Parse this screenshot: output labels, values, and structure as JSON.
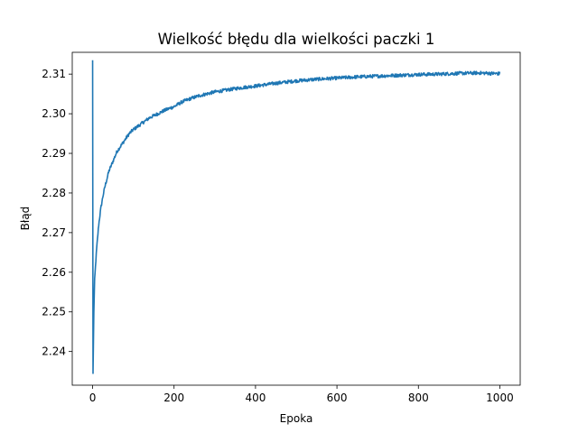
{
  "chart_data": {
    "type": "line",
    "title": "Wielkość błędu dla wielkości paczki 1",
    "xlabel": "Epoka",
    "ylabel": "Błąd",
    "xlim": [
      -50,
      1050
    ],
    "ylim": [
      2.2315,
      2.3155
    ],
    "xticks": [
      0,
      200,
      400,
      600,
      800,
      1000
    ],
    "xtick_labels": [
      "0",
      "200",
      "400",
      "600",
      "800",
      "1000"
    ],
    "yticks": [
      2.24,
      2.25,
      2.26,
      2.27,
      2.28,
      2.29,
      2.3,
      2.31
    ],
    "ytick_labels": [
      "2.24",
      "2.25",
      "2.26",
      "2.27",
      "2.28",
      "2.29",
      "2.30",
      "2.31"
    ],
    "grid": false,
    "legend": "none",
    "series": [
      {
        "color": "#1f77b4",
        "x": [
          0,
          1,
          2,
          3,
          5,
          8,
          10,
          15,
          20,
          25,
          30,
          40,
          50,
          60,
          70,
          80,
          90,
          100,
          120,
          140,
          160,
          180,
          200,
          220,
          240,
          260,
          280,
          300,
          330,
          360,
          400,
          450,
          500,
          550,
          600,
          650,
          700,
          750,
          800,
          850,
          900,
          950,
          1000
        ],
        "y": [
          2.3135,
          2.2345,
          2.242,
          2.25,
          2.258,
          2.263,
          2.266,
          2.272,
          2.276,
          2.279,
          2.2815,
          2.2855,
          2.288,
          2.2905,
          2.292,
          2.2935,
          2.295,
          2.296,
          2.2975,
          2.299,
          2.3,
          2.301,
          2.3018,
          2.303,
          2.3038,
          2.3045,
          2.305,
          2.3055,
          2.306,
          2.3065,
          2.307,
          2.3077,
          2.3083,
          2.3087,
          2.309,
          2.3093,
          2.3095,
          2.3097,
          2.3099,
          2.31,
          2.3102,
          2.3103,
          2.3101
        ]
      }
    ]
  }
}
